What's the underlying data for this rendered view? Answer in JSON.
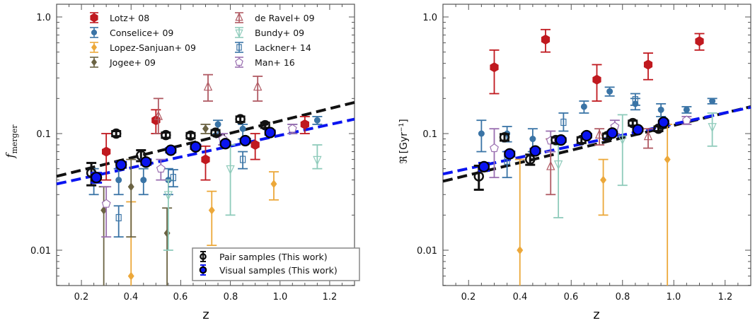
{
  "chart_data": [
    {
      "type": "scatter",
      "panel": "left",
      "title": "",
      "xlabel": "z",
      "ylabel": "f_merger",
      "ylabel_main": "f",
      "ylabel_sub": "merger",
      "xlim": [
        0.1,
        1.3
      ],
      "ylim": [
        0.005,
        1.3
      ],
      "yscale": "log",
      "xticks": [
        0.2,
        0.4,
        0.6,
        0.8,
        1.0,
        1.2
      ],
      "xtick_labels": [
        "0.2",
        "0.4",
        "0.6",
        "0.8",
        "1.0",
        "1.2"
      ],
      "yticks": [
        0.01,
        0.1,
        1.0
      ],
      "ytick_labels": [
        "0.01",
        "0.1",
        "1.0"
      ],
      "grid": false,
      "legend_literature": {
        "placement": "top",
        "entries": [
          "Lotz+ 08",
          "Conselice+ 09",
          "Lopez-Sanjuan+ 09",
          "Jogee+ 09",
          "de Ravel+ 09",
          "Bundy+ 09",
          "Lackner+ 14",
          "Man+ 16"
        ]
      },
      "legend_this_work": {
        "placement": "lower-right",
        "entries": [
          "Pair samples (This work)",
          "Visual samples (This work)"
        ]
      },
      "series": [
        {
          "name": "Lotz+ 08",
          "marker": "hexagon-filled",
          "color": "#c0191f",
          "points": [
            [
              0.3,
              0.07,
              0.04,
              0.1
            ],
            [
              0.5,
              0.13,
              0.1,
              0.16
            ],
            [
              0.7,
              0.06,
              0.04,
              0.078
            ],
            [
              0.9,
              0.08,
              0.06,
              0.1
            ],
            [
              1.1,
              0.12,
              0.1,
              0.14
            ]
          ]
        },
        {
          "name": "Conselice+ 09",
          "marker": "circle-small",
          "color": "#3a74a6",
          "points": [
            [
              0.25,
              0.04,
              0.03,
              0.05
            ],
            [
              0.35,
              0.04,
              0.03,
              0.05
            ],
            [
              0.45,
              0.04,
              0.03,
              0.05
            ],
            [
              0.55,
              0.04,
              0.03,
              0.05
            ],
            [
              0.75,
              0.12,
              0.1,
              0.13
            ],
            [
              0.85,
              0.11,
              0.09,
              0.12
            ],
            [
              1.05,
              0.11,
              0.1,
              0.12
            ],
            [
              1.15,
              0.13,
              0.12,
              0.14
            ]
          ]
        },
        {
          "name": "Lopez-Sanjuan+ 09",
          "marker": "diamond-filled",
          "color": "#eca83a",
          "points": [
            [
              0.4,
              0.006,
              0.002,
              0.026
            ],
            [
              0.725,
              0.022,
              0.011,
              0.032
            ],
            [
              0.975,
              0.037,
              0.027,
              0.047
            ]
          ]
        },
        {
          "name": "Jogee+ 09",
          "marker": "diamond-filled",
          "color": "#6b6343",
          "points": [
            [
              0.29,
              0.022,
              0.002,
              0.035
            ],
            [
              0.4,
              0.035,
              0.013,
              0.06
            ],
            [
              0.545,
              0.014,
              0.002,
              0.023
            ],
            [
              0.7,
              0.11,
              0.1,
              0.12
            ]
          ]
        },
        {
          "name": "de Ravel+ 09",
          "marker": "triangle-up-open",
          "color": "#b05a63",
          "points": [
            [
              0.51,
              0.14,
              0.1,
              0.2
            ],
            [
              0.71,
              0.25,
              0.19,
              0.32
            ],
            [
              0.91,
              0.25,
              0.19,
              0.31
            ]
          ]
        },
        {
          "name": "Bundy+ 09",
          "marker": "triangle-down-open",
          "color": "#8fcbbb",
          "points": [
            [
              0.55,
              0.03,
              0.01,
              0.04
            ],
            [
              0.8,
              0.05,
              0.02,
              0.08
            ],
            [
              1.15,
              0.06,
              0.05,
              0.08
            ]
          ]
        },
        {
          "name": "Lackner+ 14",
          "marker": "square-open",
          "color": "#3a74a6",
          "points": [
            [
              0.35,
              0.019,
              0.013,
              0.024
            ],
            [
              0.57,
              0.042,
              0.035,
              0.049
            ],
            [
              0.85,
              0.06,
              0.05,
              0.07
            ]
          ]
        },
        {
          "name": "Man+ 16",
          "marker": "pentagon-open",
          "color": "#9a6fb0",
          "points": [
            [
              0.3,
              0.025,
              0.013,
              0.035
            ],
            [
              0.52,
              0.05,
              0.04,
              0.06
            ],
            [
              0.77,
              0.09,
              0.08,
              0.1
            ],
            [
              1.05,
              0.11,
              0.1,
              0.12
            ]
          ]
        },
        {
          "name": "Pair samples (This work)",
          "marker": "circle-open-thick",
          "color": "#111111",
          "points": [
            [
              0.24,
              0.046,
              0.036,
              0.056
            ],
            [
              0.34,
              0.1,
              0.095,
              0.105
            ],
            [
              0.44,
              0.065,
              0.058,
              0.072
            ],
            [
              0.54,
              0.097,
              0.092,
              0.102
            ],
            [
              0.64,
              0.096,
              0.091,
              0.101
            ],
            [
              0.74,
              0.102,
              0.097,
              0.107
            ],
            [
              0.84,
              0.133,
              0.126,
              0.14
            ],
            [
              0.94,
              0.118,
              0.112,
              0.124
            ]
          ]
        },
        {
          "name": "Visual samples (This work)",
          "marker": "circle-filled",
          "color": "#0a14f0",
          "points": [
            [
              0.26,
              0.042,
              0.038,
              0.046
            ],
            [
              0.36,
              0.054,
              0.051,
              0.057
            ],
            [
              0.46,
              0.057,
              0.054,
              0.06
            ],
            [
              0.56,
              0.072,
              0.069,
              0.075
            ],
            [
              0.66,
              0.077,
              0.074,
              0.08
            ],
            [
              0.78,
              0.082,
              0.079,
              0.085
            ],
            [
              0.86,
              0.087,
              0.084,
              0.09
            ],
            [
              0.96,
              0.102,
              0.098,
              0.106
            ]
          ]
        }
      ],
      "fit_lines": [
        {
          "name": "Pair fit",
          "style": "dashed",
          "color": "#111111",
          "x": [
            0.1,
            1.3
          ],
          "y": [
            0.043,
            0.185
          ]
        },
        {
          "name": "Visual fit",
          "style": "dashed",
          "color": "#0a14f0",
          "x": [
            0.1,
            1.3
          ],
          "y": [
            0.037,
            0.133
          ]
        }
      ]
    },
    {
      "type": "scatter",
      "panel": "right",
      "title": "",
      "xlabel": "z",
      "ylabel": "ℜ [Gyr⁻¹]",
      "ylabel_symbol": "ℜ",
      "ylabel_unit": "[Gyr",
      "ylabel_exp": "−1",
      "ylabel_close": "]",
      "xlim": [
        0.1,
        1.3
      ],
      "ylim": [
        0.005,
        1.3
      ],
      "yscale": "log",
      "xticks": [
        0.2,
        0.4,
        0.6,
        0.8,
        1.0,
        1.2
      ],
      "xtick_labels": [
        "0.2",
        "0.4",
        "0.6",
        "0.8",
        "1.0",
        "1.2"
      ],
      "yticks": [
        0.01,
        0.1,
        1.0
      ],
      "ytick_labels": [
        "0.01",
        "0.1",
        "1.0"
      ],
      "grid": false,
      "series": [
        {
          "name": "Lotz+ 08",
          "marker": "hexagon-filled",
          "color": "#c0191f",
          "points": [
            [
              0.3,
              0.37,
              0.22,
              0.52
            ],
            [
              0.5,
              0.64,
              0.5,
              0.78
            ],
            [
              0.7,
              0.29,
              0.19,
              0.39
            ],
            [
              0.9,
              0.39,
              0.29,
              0.49
            ],
            [
              1.1,
              0.62,
              0.52,
              0.72
            ]
          ]
        },
        {
          "name": "Conselice+ 09",
          "marker": "circle-small",
          "color": "#3a74a6",
          "points": [
            [
              0.25,
              0.1,
              0.07,
              0.13
            ],
            [
              0.35,
              0.1,
              0.085,
              0.115
            ],
            [
              0.45,
              0.09,
              0.07,
              0.11
            ],
            [
              0.65,
              0.17,
              0.15,
              0.19
            ],
            [
              0.75,
              0.23,
              0.21,
              0.25
            ],
            [
              0.85,
              0.18,
              0.16,
              0.2
            ],
            [
              0.95,
              0.16,
              0.14,
              0.18
            ],
            [
              1.05,
              0.16,
              0.15,
              0.17
            ],
            [
              1.15,
              0.19,
              0.18,
              0.2
            ]
          ]
        },
        {
          "name": "Lopez-Sanjuan+ 09",
          "marker": "diamond-filled",
          "color": "#eca83a",
          "points": [
            [
              0.4,
              0.01,
              0.002,
              0.06
            ],
            [
              0.725,
              0.04,
              0.02,
              0.06
            ],
            [
              0.975,
              0.06,
              0.002,
              0.12
            ]
          ]
        },
        {
          "name": "de Ravel+ 09",
          "marker": "triangle-up-open",
          "color": "#b05a63",
          "points": [
            [
              0.52,
              0.052,
              0.03,
              0.09
            ],
            [
              0.71,
              0.097,
              0.08,
              0.11
            ],
            [
              0.9,
              0.094,
              0.075,
              0.11
            ]
          ]
        },
        {
          "name": "Bundy+ 09",
          "marker": "triangle-down-open",
          "color": "#8fcbbb",
          "points": [
            [
              0.55,
              0.055,
              0.019,
              0.08
            ],
            [
              0.8,
              0.09,
              0.036,
              0.145
            ],
            [
              1.15,
              0.115,
              0.078,
              0.15
            ]
          ]
        },
        {
          "name": "Lackner+ 14",
          "marker": "square-open",
          "color": "#3a74a6",
          "points": [
            [
              0.35,
              0.058,
              0.042,
              0.07
            ],
            [
              0.57,
              0.125,
              0.105,
              0.15
            ],
            [
              0.85,
              0.195,
              0.175,
              0.22
            ]
          ]
        },
        {
          "name": "Man+ 16",
          "marker": "pentagon-open",
          "color": "#9a6fb0",
          "points": [
            [
              0.3,
              0.075,
              0.042,
              0.11
            ],
            [
              0.52,
              0.087,
              0.07,
              0.105
            ],
            [
              0.77,
              0.115,
              0.1,
              0.13
            ],
            [
              1.05,
              0.13,
              0.12,
              0.14
            ]
          ]
        },
        {
          "name": "Pair samples (This work)",
          "marker": "circle-open-thick",
          "color": "#111111",
          "points": [
            [
              0.24,
              0.043,
              0.033,
              0.053
            ],
            [
              0.34,
              0.093,
              0.087,
              0.099
            ],
            [
              0.44,
              0.06,
              0.054,
              0.066
            ],
            [
              0.54,
              0.088,
              0.083,
              0.093
            ],
            [
              0.64,
              0.088,
              0.083,
              0.093
            ],
            [
              0.74,
              0.095,
              0.09,
              0.1
            ],
            [
              0.84,
              0.123,
              0.117,
              0.129
            ],
            [
              0.94,
              0.11,
              0.105,
              0.115
            ]
          ]
        },
        {
          "name": "Visual samples (This work)",
          "marker": "circle-filled",
          "color": "#0a14f0",
          "points": [
            [
              0.26,
              0.052,
              0.048,
              0.056
            ],
            [
              0.36,
              0.067,
              0.064,
              0.07
            ],
            [
              0.46,
              0.071,
              0.068,
              0.074
            ],
            [
              0.56,
              0.088,
              0.085,
              0.091
            ],
            [
              0.66,
              0.096,
              0.093,
              0.099
            ],
            [
              0.76,
              0.101,
              0.098,
              0.104
            ],
            [
              0.86,
              0.108,
              0.105,
              0.111
            ],
            [
              0.96,
              0.125,
              0.121,
              0.129
            ]
          ]
        }
      ],
      "fit_lines": [
        {
          "name": "Pair fit",
          "style": "dashed",
          "color": "#111111",
          "x": [
            0.1,
            1.3
          ],
          "y": [
            0.039,
            0.17
          ]
        },
        {
          "name": "Visual fit",
          "style": "dashed",
          "color": "#0a14f0",
          "x": [
            0.1,
            1.3
          ],
          "y": [
            0.045,
            0.168
          ]
        }
      ]
    }
  ]
}
